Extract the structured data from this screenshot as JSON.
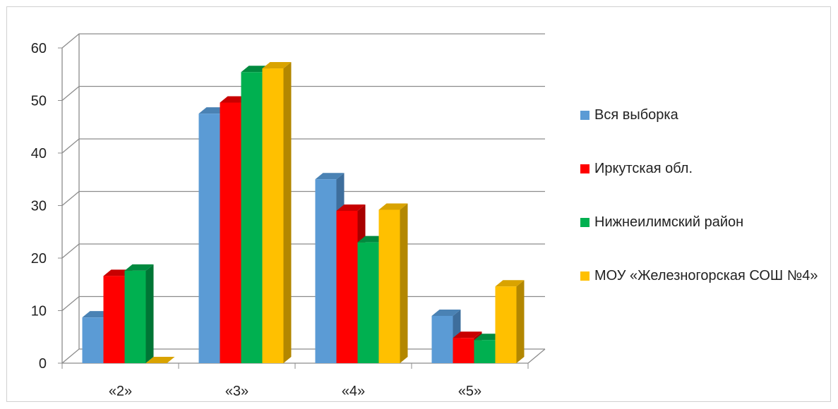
{
  "chart_data": {
    "type": "bar",
    "categories": [
      "«2»",
      "«3»",
      "«4»",
      "«5»"
    ],
    "series": [
      {
        "name": "Вся выборка",
        "color": "#5b9bd5",
        "side": "#3e6e9c",
        "top": "#4a82b4",
        "values": [
          8.7,
          47.5,
          35,
          9
        ]
      },
      {
        "name": "Иркутская обл.",
        "color": "#ff0000",
        "side": "#a80000",
        "top": "#c80000",
        "values": [
          16.6,
          49.6,
          29,
          4.8
        ]
      },
      {
        "name": "Нижнеилимский район",
        "color": "#00b050",
        "side": "#007535",
        "top": "#008a3f",
        "values": [
          17.6,
          55.4,
          23,
          4.4
        ]
      },
      {
        "name": "МОУ «Железногорская СОШ №4»",
        "color": "#ffc000",
        "side": "#b38700",
        "top": "#d9a300",
        "values": [
          0,
          56.1,
          29.2,
          14.6
        ]
      }
    ],
    "yticks": [
      "0",
      "10",
      "20",
      "30",
      "40",
      "50",
      "60"
    ],
    "ylim": [
      0,
      60
    ],
    "grid": true,
    "legend_position": "right"
  }
}
